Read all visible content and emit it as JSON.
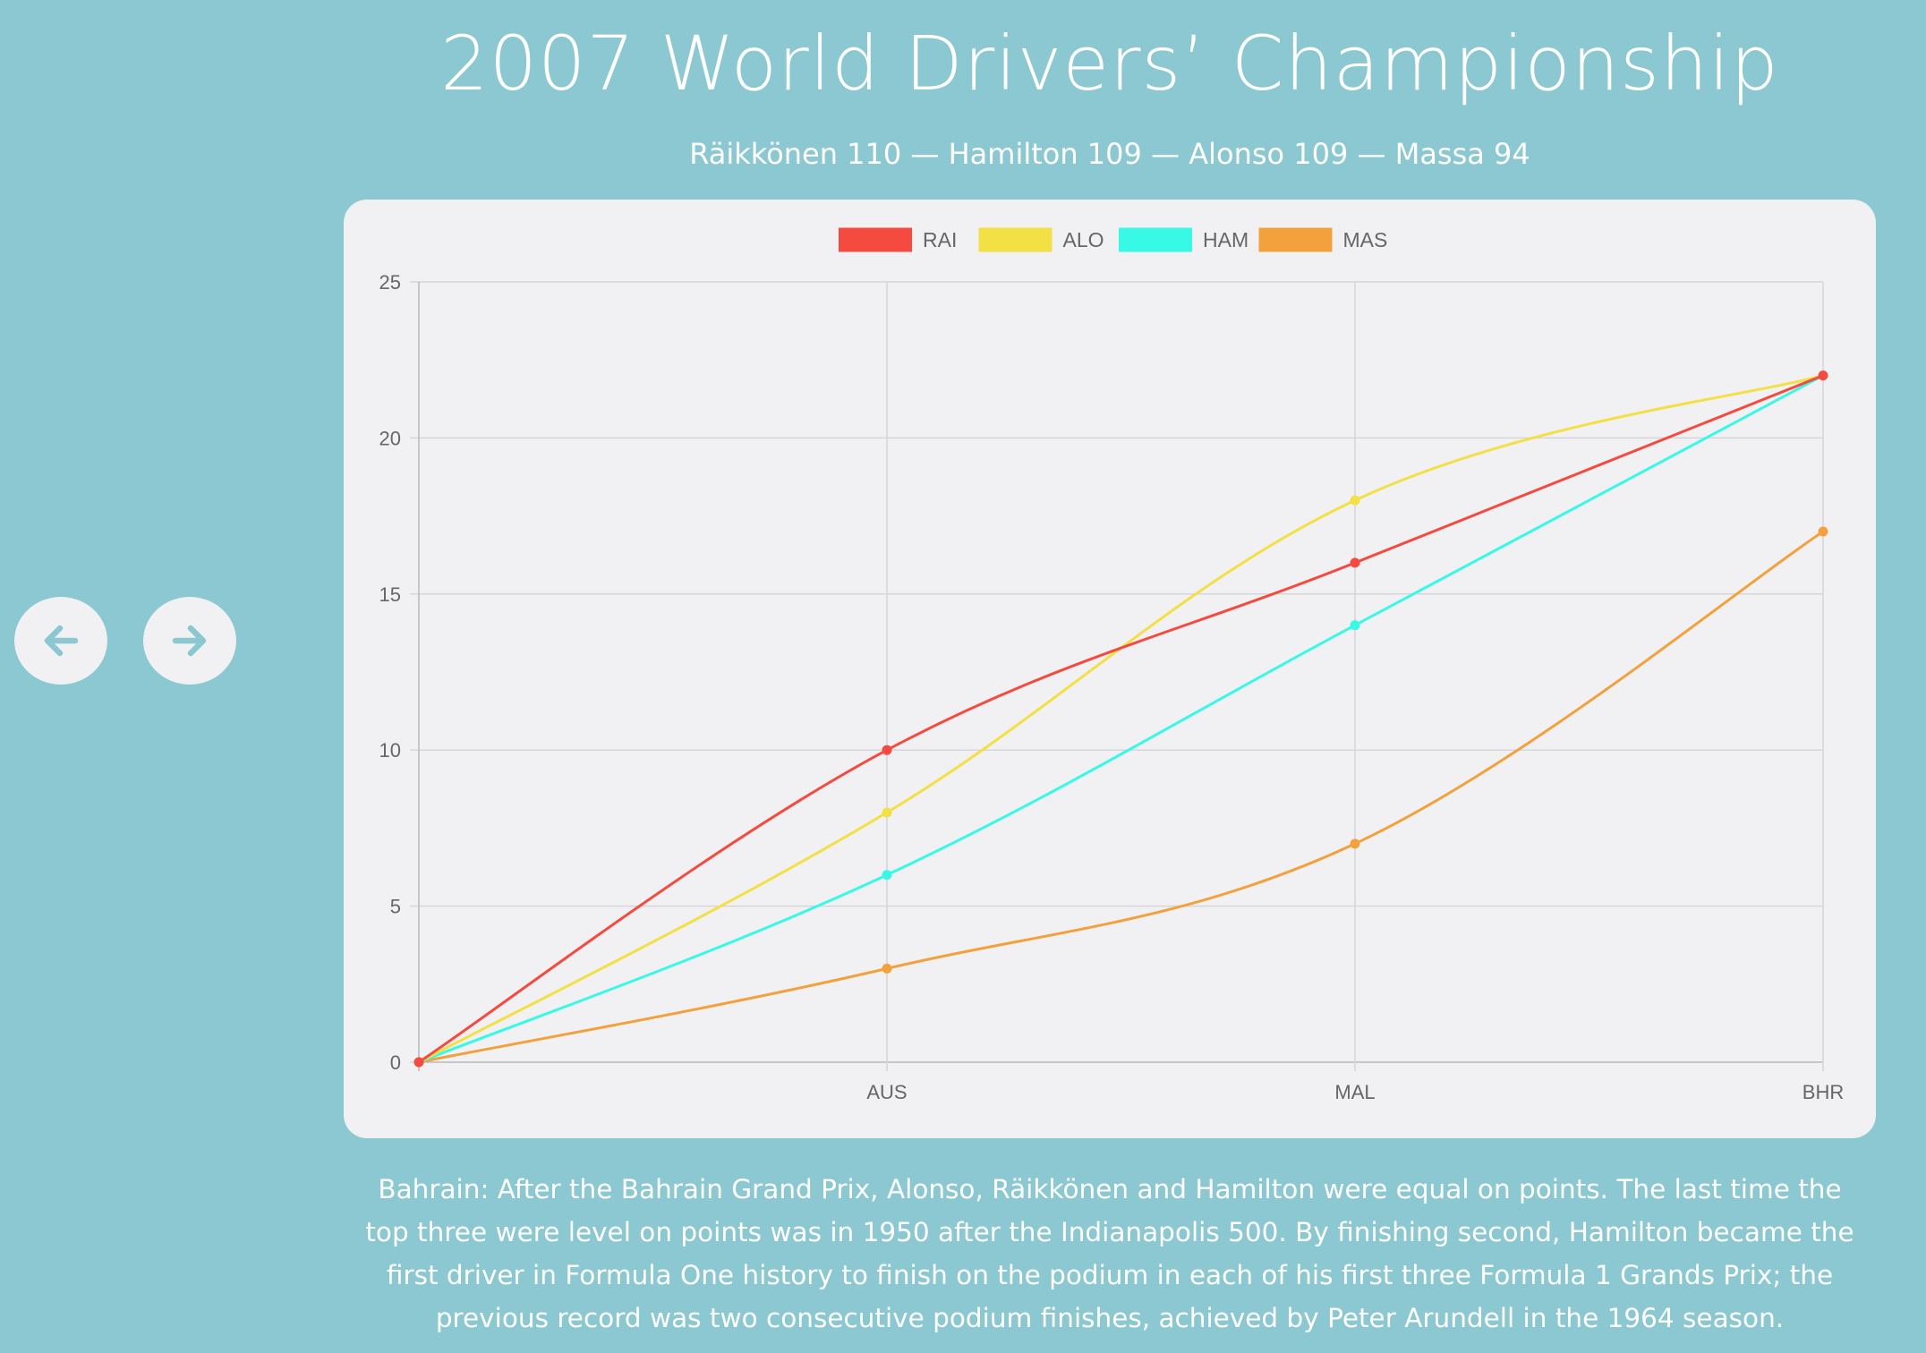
{
  "header": {
    "title": "2007 World Drivers’ Championship",
    "subtitle": "Räikkönen 110 — Hamilton 109 — Alonso 109 — Massa 94"
  },
  "nav": {
    "prev_icon": "arrow-left-icon",
    "next_icon": "arrow-right-icon"
  },
  "chart_data": {
    "type": "line",
    "title": "",
    "xlabel": "",
    "ylabel": "",
    "categories": [
      "",
      "AUS",
      "MAL",
      "BHR"
    ],
    "ylim": [
      0,
      25
    ],
    "yticks": [
      0,
      5,
      10,
      15,
      20,
      25
    ],
    "grid": true,
    "legend_position": "top",
    "series": [
      {
        "name": "RAI",
        "color": "#f44a40",
        "values": [
          0,
          10,
          16,
          22
        ]
      },
      {
        "name": "ALO",
        "color": "#f2e045",
        "values": [
          0,
          8,
          18,
          22
        ]
      },
      {
        "name": "HAM",
        "color": "#37f9e6",
        "values": [
          0,
          6,
          14,
          22
        ]
      },
      {
        "name": "MAS",
        "color": "#f3a13d",
        "values": [
          0,
          3,
          7,
          17
        ]
      }
    ]
  },
  "caption": "Bahrain: After the Bahrain Grand Prix, Alonso, Räikkönen and Hamilton were equal on points. The last time the top three were level on points was in 1950 after the Indianapolis 500. By finishing second, Hamilton became the first driver in Formula One history to finish on the podium in each of his first three Formula 1 Grands Prix; the previous record was two consecutive podium finishes, achieved by Peter Arundell in the 1964 season.",
  "colors": {
    "background": "#8bc8d1",
    "card": "#f1f1f3",
    "text": "#ffffff"
  }
}
